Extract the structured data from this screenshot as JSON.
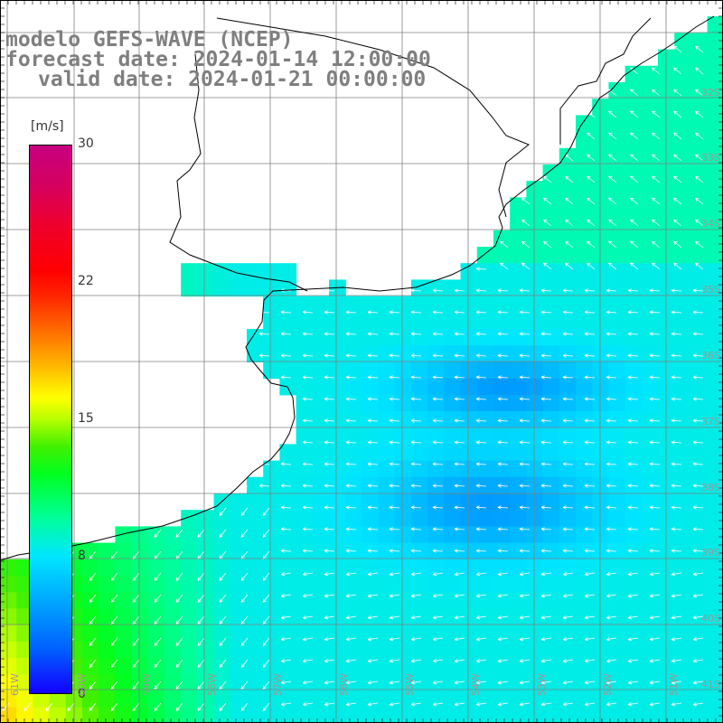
{
  "title": {
    "line1": "modelo GEFS-WAVE (NCEP)",
    "line2": "forecast date: 2024-01-14 12:00:00",
    "line3": "valid date: 2024-01-21 00:00:00"
  },
  "colorbar": {
    "unit": "[m/s]",
    "ticks": [
      "30",
      "22",
      "15",
      "8",
      "0"
    ],
    "range": [
      0,
      30
    ]
  },
  "lat_labels": [
    "32S",
    "33S",
    "34S",
    "35S",
    "36S",
    "37S",
    "38S",
    "39S",
    "40S",
    "41S"
  ],
  "lon_labels": [
    "61W",
    "60W",
    "59W",
    "58W",
    "57W",
    "56W",
    "55W",
    "54W",
    "53W",
    "52W",
    "51W"
  ],
  "colors": {
    "land": "#ffffff",
    "coast": "#000000",
    "grid": "#808080",
    "arrow": "#ffffff",
    "title_text": "#7f7f7f"
  }
}
